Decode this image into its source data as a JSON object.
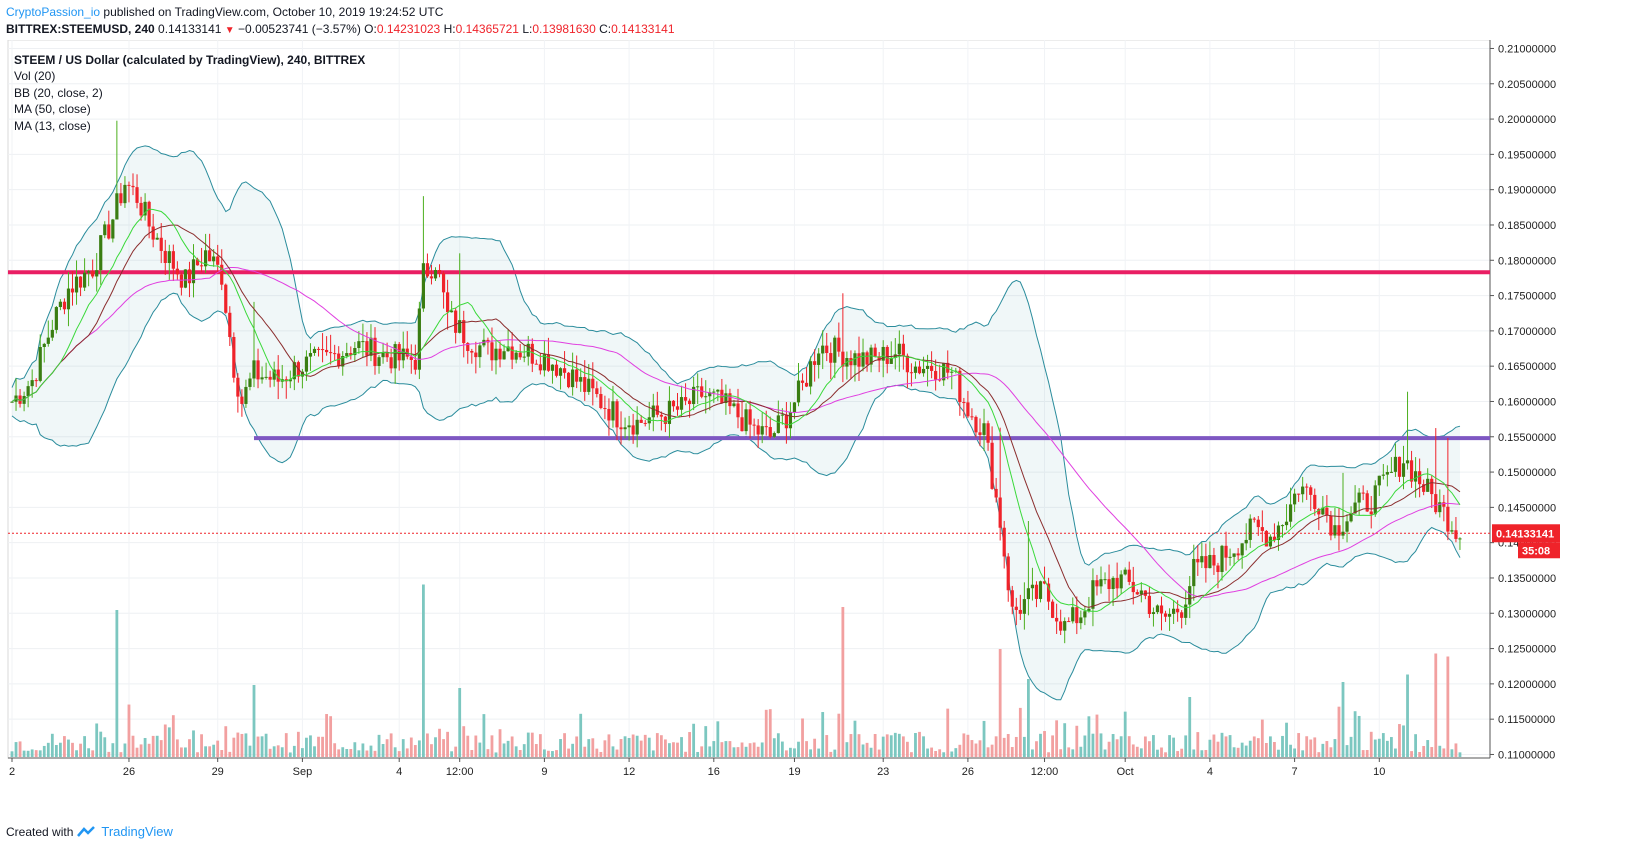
{
  "header": {
    "publisher": "CryptoPassion_io",
    "published_text": "published on TradingView.com, October 10, 2019 19:24:52 UTC",
    "symbol": "BITTREX:STEEMUSD, 240",
    "last": "0.14133141",
    "change": "−0.00523741 (−3.57%)",
    "o_label": "O:",
    "o": "0.14231023",
    "h_label": "H:",
    "h": "0.14365721",
    "l_label": "L:",
    "l": "0.13981630",
    "c_label": "C:",
    "c": "0.14133141"
  },
  "legend": {
    "title": "STEEM / US Dollar (calculated by TradingView), 240, BITTREX",
    "items": [
      "Vol (20)",
      "BB (20, close, 2)",
      "MA (50, close)",
      "MA (13, close)"
    ]
  },
  "footer": {
    "created": "Created with",
    "brand": "TradingView"
  },
  "colors": {
    "up": "#4caf1e",
    "upBody": "#3a7d12",
    "down": "#ef232a",
    "ma13": "#3ad93a",
    "ma20": "#8b2e2e",
    "ma50": "#e040e0",
    "bb": "#2a8c9c",
    "resistance": "#e91e63",
    "support": "#7e57c2",
    "price": "#ef232a"
  },
  "chart_data": {
    "type": "candlestick",
    "title": "STEEM / US Dollar (calculated by TradingView), 240, BITTREX",
    "y_ticks": [
      "0.21000000",
      "0.20500000",
      "0.20000000",
      "0.19500000",
      "0.19000000",
      "0.18500000",
      "0.18000000",
      "0.17500000",
      "0.17000000",
      "0.16500000",
      "0.16000000",
      "0.15500000",
      "0.15000000",
      "0.14500000",
      "0.14000000",
      "0.13500000",
      "0.13000000",
      "0.12500000",
      "0.12000000",
      "0.11500000",
      "0.11000000"
    ],
    "ylim": [
      0.1095,
      0.2112
    ],
    "x_ticks": [
      "2",
      "26",
      "29",
      "Sep",
      "4",
      "12:00",
      "9",
      "12",
      "16",
      "19",
      "23",
      "26",
      "12:00",
      "Oct",
      "4",
      "7",
      "10"
    ],
    "last_price_label": "0.14133141",
    "countdown_label": "35:08",
    "resistance_level": 0.1783,
    "support_level": 0.1548,
    "close_keypoints": [
      [
        0,
        0.16
      ],
      [
        5,
        0.163
      ],
      [
        10,
        0.171
      ],
      [
        14,
        0.176
      ],
      [
        20,
        0.179
      ],
      [
        25,
        0.186
      ],
      [
        28,
        0.191
      ],
      [
        31,
        0.189
      ],
      [
        34,
        0.185
      ],
      [
        38,
        0.181
      ],
      [
        43,
        0.177
      ],
      [
        48,
        0.181
      ],
      [
        52,
        0.178
      ],
      [
        55,
        0.165
      ],
      [
        57,
        0.16
      ],
      [
        60,
        0.164
      ],
      [
        66,
        0.163
      ],
      [
        71,
        0.165
      ],
      [
        78,
        0.166
      ],
      [
        85,
        0.168
      ],
      [
        90,
        0.167
      ],
      [
        96,
        0.166
      ],
      [
        100,
        0.166
      ],
      [
        102,
        0.178
      ],
      [
        105,
        0.18
      ],
      [
        108,
        0.172
      ],
      [
        113,
        0.169
      ],
      [
        118,
        0.167
      ],
      [
        122,
        0.168
      ],
      [
        128,
        0.167
      ],
      [
        133,
        0.166
      ],
      [
        138,
        0.164
      ],
      [
        144,
        0.161
      ],
      [
        150,
        0.158
      ],
      [
        155,
        0.157
      ],
      [
        160,
        0.158
      ],
      [
        166,
        0.159
      ],
      [
        171,
        0.161
      ],
      [
        175,
        0.16
      ],
      [
        180,
        0.158
      ],
      [
        184,
        0.156
      ],
      [
        188,
        0.155
      ],
      [
        192,
        0.158
      ],
      [
        196,
        0.162
      ],
      [
        200,
        0.168
      ],
      [
        205,
        0.167
      ],
      [
        210,
        0.166
      ],
      [
        214,
        0.166
      ],
      [
        219,
        0.167
      ],
      [
        224,
        0.165
      ],
      [
        229,
        0.165
      ],
      [
        233,
        0.164
      ],
      [
        237,
        0.159
      ],
      [
        241,
        0.156
      ],
      [
        245,
        0.143
      ],
      [
        248,
        0.13
      ],
      [
        252,
        0.132
      ],
      [
        256,
        0.133
      ],
      [
        261,
        0.128
      ],
      [
        265,
        0.13
      ],
      [
        268,
        0.133
      ],
      [
        274,
        0.135
      ],
      [
        280,
        0.133
      ],
      [
        285,
        0.129
      ],
      [
        290,
        0.131
      ],
      [
        293,
        0.136
      ],
      [
        298,
        0.137
      ],
      [
        304,
        0.14
      ],
      [
        308,
        0.142
      ],
      [
        312,
        0.141
      ],
      [
        316,
        0.144
      ],
      [
        319,
        0.148
      ],
      [
        324,
        0.146
      ],
      [
        328,
        0.142
      ],
      [
        333,
        0.145
      ],
      [
        337,
        0.146
      ],
      [
        341,
        0.149
      ],
      [
        345,
        0.152
      ],
      [
        350,
        0.148
      ],
      [
        354,
        0.145
      ],
      [
        359,
        0.1413
      ]
    ],
    "volume_ymax": 10,
    "volume_spikes": [
      [
        26,
        9.8
      ],
      [
        60,
        4.8
      ],
      [
        102,
        11.5
      ],
      [
        111,
        4.6
      ],
      [
        206,
        10
      ],
      [
        245,
        7.2
      ],
      [
        252,
        5.2
      ],
      [
        292,
        4
      ],
      [
        330,
        5
      ],
      [
        346,
        5.5
      ],
      [
        353,
        6.9
      ],
      [
        356,
        6.7
      ]
    ]
  }
}
